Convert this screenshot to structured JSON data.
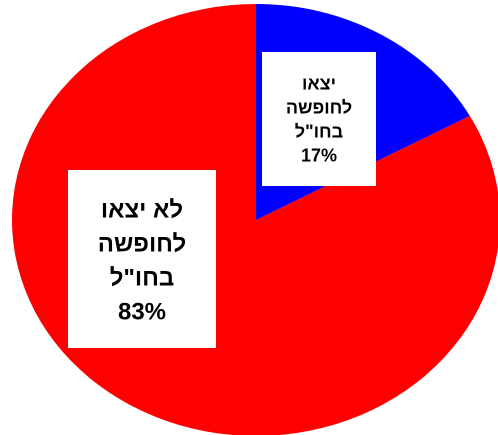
{
  "chart_data": {
    "type": "pie",
    "title": "",
    "start_angle_deg": 0,
    "direction": "clockwise",
    "slices": [
      {
        "label_lines": [
          "יצאו",
          "לחופשה",
          "בחו\"ל",
          "17%"
        ],
        "value": 17,
        "color": "#0000ff"
      },
      {
        "label_lines": [
          "לא יצאו",
          "לחופשה",
          "בחו\"ל",
          "83%"
        ],
        "value": 83,
        "color": "#ff0000"
      }
    ],
    "legend": "none",
    "label_box_color": "#ffffff"
  }
}
